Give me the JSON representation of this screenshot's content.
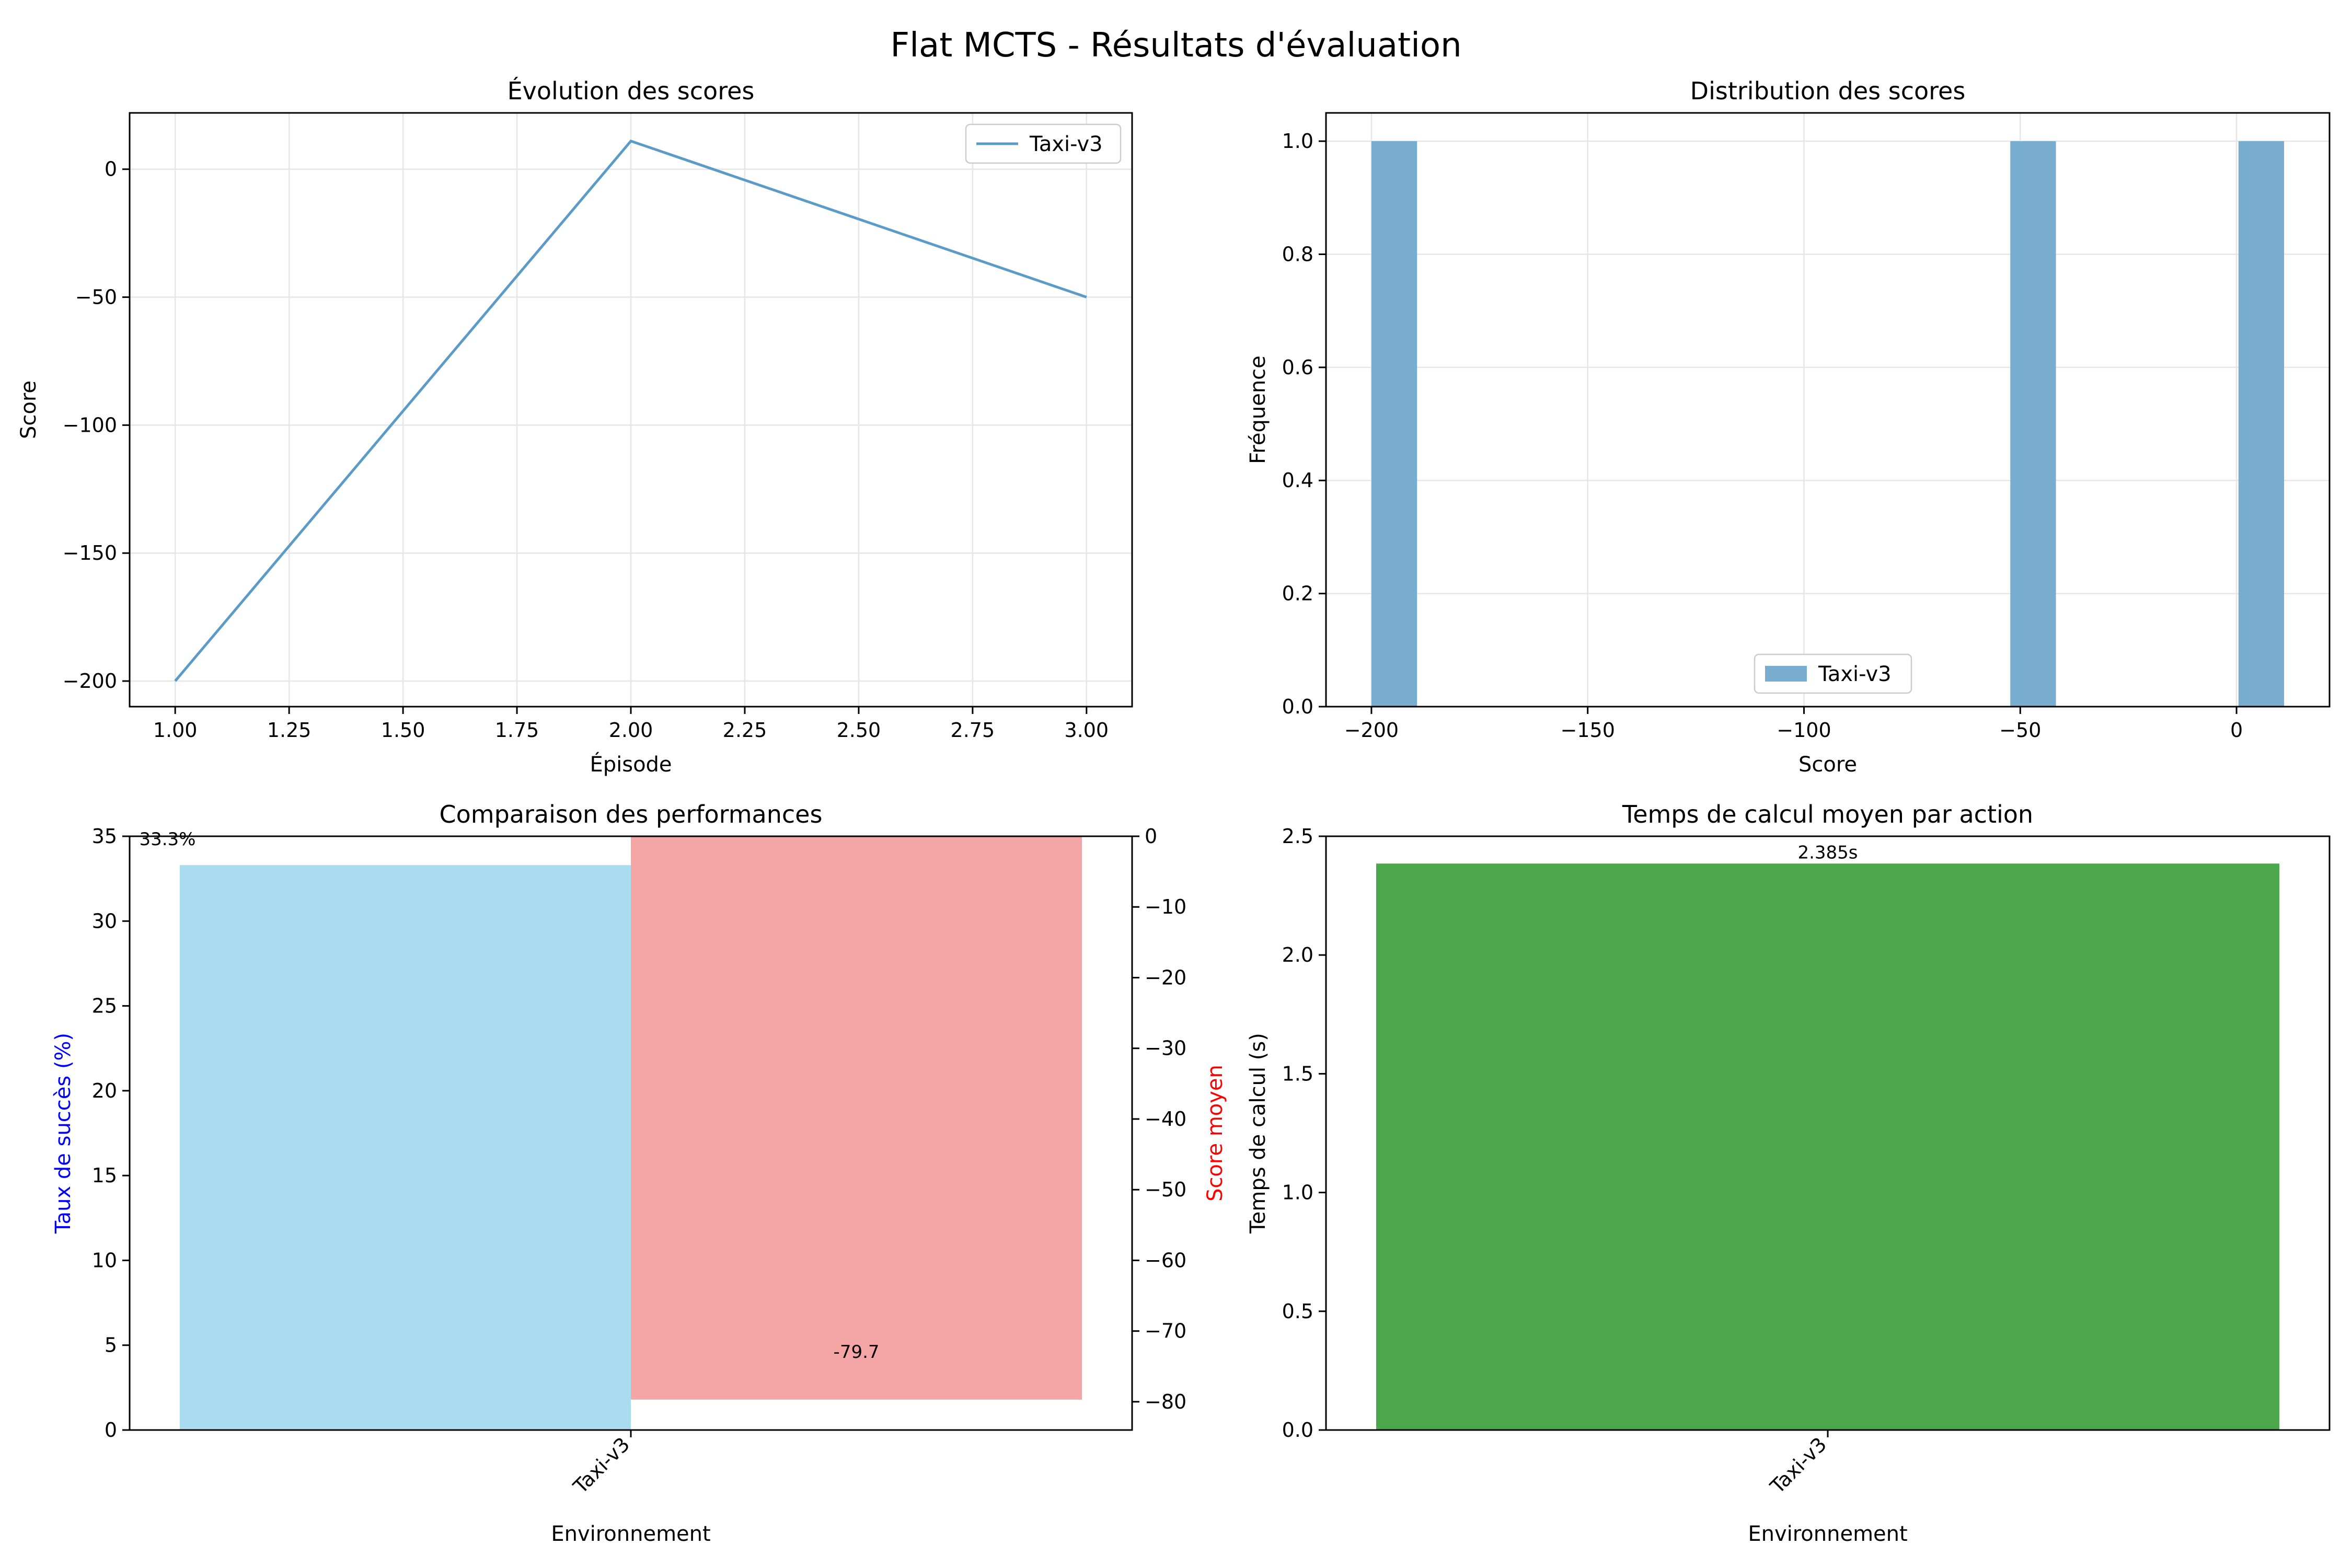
{
  "suptitle": "Flat MCTS - Résultats d'évaluation",
  "colors": {
    "line": "#5b9bc8",
    "hist": "#78adcf",
    "success_bar": "#a9dcef",
    "score_bar": "#f4a6a6",
    "time_bar": "#4ca64c",
    "left_axis_label": "#0000ff",
    "right_axis_label": "#ff0000"
  },
  "chart_data": [
    {
      "id": "score-evolution",
      "type": "line",
      "title": "Évolution des scores",
      "xlabel": "Épisode",
      "ylabel": "Score",
      "xlim": [
        0.9,
        3.1
      ],
      "ylim": [
        -210,
        22
      ],
      "xticks": [
        1.0,
        1.25,
        1.5,
        1.75,
        2.0,
        2.25,
        2.5,
        2.75,
        3.0
      ],
      "xtick_labels": [
        "1.00",
        "1.25",
        "1.50",
        "1.75",
        "2.00",
        "2.25",
        "2.50",
        "2.75",
        "3.00"
      ],
      "yticks": [
        -200,
        -150,
        -100,
        -50,
        0
      ],
      "ytick_labels": [
        "−200",
        "−150",
        "−100",
        "−50",
        "0"
      ],
      "grid": true,
      "legend": "top-right",
      "series": [
        {
          "name": "Taxi-v3",
          "x": [
            1,
            2,
            3
          ],
          "y": [
            -200,
            11,
            -50
          ]
        }
      ]
    },
    {
      "id": "score-distribution",
      "type": "bar",
      "title": "Distribution des scores",
      "xlabel": "Score",
      "ylabel": "Fréquence",
      "xlim": [
        -210.5,
        21.5
      ],
      "ylim": [
        0,
        1.05
      ],
      "xticks": [
        -200,
        -150,
        -100,
        -50,
        0
      ],
      "xtick_labels": [
        "−200",
        "−150",
        "−100",
        "−50",
        "0"
      ],
      "yticks": [
        0,
        0.2,
        0.4,
        0.6,
        0.8,
        1.0
      ],
      "ytick_labels": [
        "0.0",
        "0.2",
        "0.4",
        "0.6",
        "0.8",
        "1.0"
      ],
      "grid": true,
      "legend": "bottom-center",
      "series": [
        {
          "name": "Taxi-v3",
          "bins": [
            {
              "x0": -200,
              "x1": -189.45,
              "count": 1
            },
            {
              "x0": -52.3,
              "x1": -41.75,
              "count": 1
            },
            {
              "x0": 0.45,
              "x1": 11,
              "count": 1
            }
          ]
        }
      ]
    },
    {
      "id": "performance-comparison",
      "type": "bar",
      "title": "Comparaison des performances",
      "xlabel": "Environnement",
      "ylabel_left": "Taux de succès (%)",
      "ylabel_right": "Score moyen",
      "categories": [
        "Taxi-v3"
      ],
      "xlim": [
        -0.5,
        0.5
      ],
      "ylim_left": [
        0,
        35
      ],
      "ylim_right": [
        -84,
        0
      ],
      "yticks_left": [
        0,
        5,
        10,
        15,
        20,
        25,
        30,
        35
      ],
      "ytick_labels_left": [
        "0",
        "5",
        "10",
        "15",
        "20",
        "25",
        "30",
        "35"
      ],
      "yticks_right": [
        0,
        -10,
        -20,
        -30,
        -40,
        -50,
        -60,
        -70,
        -80
      ],
      "ytick_labels_right": [
        "0",
        "−10",
        "−20",
        "−30",
        "−40",
        "−50",
        "−60",
        "−70",
        "−80"
      ],
      "series": [
        {
          "axis": "left",
          "x0": -0.45,
          "x1": 0,
          "values": [
            33.3
          ],
          "label": "33.3%"
        },
        {
          "axis": "right",
          "x0": 0,
          "x1": 0.45,
          "values": [
            -79.7
          ],
          "label": "-79.7"
        }
      ]
    },
    {
      "id": "compute-time",
      "type": "bar",
      "title": "Temps de calcul moyen par action",
      "xlabel": "Environnement",
      "ylabel": "Temps de calcul (s)",
      "categories": [
        "Taxi-v3"
      ],
      "xlim": [
        -0.5,
        0.5
      ],
      "ylim": [
        0,
        2.5
      ],
      "yticks": [
        0,
        0.5,
        1.0,
        1.5,
        2.0,
        2.5
      ],
      "ytick_labels": [
        "0.0",
        "0.5",
        "1.0",
        "1.5",
        "2.0",
        "2.5"
      ],
      "values": [
        2.385
      ],
      "bar_labels": [
        "2.385s"
      ]
    }
  ]
}
